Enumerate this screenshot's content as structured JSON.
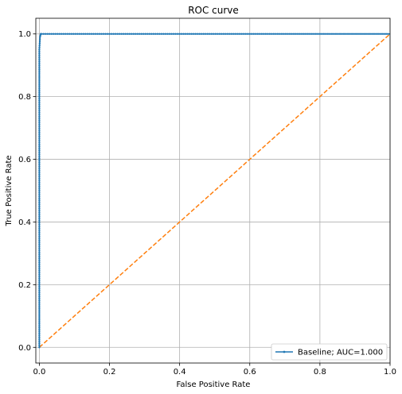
{
  "chart_data": {
    "type": "line",
    "title": "ROC curve",
    "xlabel": "False Positive Rate",
    "ylabel": "True Positive Rate",
    "xlim": [
      -0.01,
      1.0
    ],
    "ylim": [
      -0.05,
      1.05
    ],
    "xticks": [
      0.0,
      0.2,
      0.4,
      0.6,
      0.8,
      1.0
    ],
    "yticks": [
      0.0,
      0.2,
      0.4,
      0.6,
      0.8,
      1.0
    ],
    "xtick_labels": [
      "0.0",
      "0.2",
      "0.4",
      "0.6",
      "0.8",
      "1.0"
    ],
    "ytick_labels": [
      "0.0",
      "0.2",
      "0.4",
      "0.6",
      "0.8",
      "1.0"
    ],
    "grid": true,
    "legend_position": "lower-right",
    "series": [
      {
        "name": "Baseline; AUC=1.000",
        "color": "#1f77b4",
        "style": "solid-with-markers",
        "x": [
          0.0,
          0.0,
          0.0,
          0.0,
          0.0,
          0.002,
          0.004,
          0.006,
          0.2,
          0.4,
          0.6,
          0.8,
          1.0
        ],
        "y": [
          0.0,
          0.2,
          0.5,
          0.8,
          0.95,
          0.99,
          1.0,
          1.0,
          1.0,
          1.0,
          1.0,
          1.0,
          1.0
        ]
      },
      {
        "color": "#ff7f0e",
        "style": "dashed",
        "x": [
          0.0,
          1.0
        ],
        "y": [
          0.0,
          1.0
        ]
      }
    ]
  }
}
